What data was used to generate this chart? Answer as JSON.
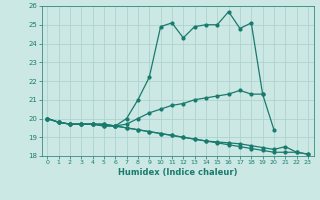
{
  "xlabel": "Humidex (Indice chaleur)",
  "xlim": [
    -0.5,
    23.5
  ],
  "ylim": [
    18,
    26
  ],
  "yticks": [
    18,
    19,
    20,
    21,
    22,
    23,
    24,
    25,
    26
  ],
  "xticks": [
    0,
    1,
    2,
    3,
    4,
    5,
    6,
    7,
    8,
    9,
    10,
    11,
    12,
    13,
    14,
    15,
    16,
    17,
    18,
    19,
    20,
    21,
    22,
    23
  ],
  "background_color": "#cce8e4",
  "grid_color": "#aacfcc",
  "line_color": "#1a7a6e",
  "s1_x": [
    0,
    1,
    2,
    3,
    4,
    5,
    6,
    7,
    8,
    9,
    10,
    11,
    12,
    13,
    14,
    15,
    16,
    17,
    18,
    19
  ],
  "s1_y": [
    20.0,
    19.8,
    19.7,
    19.7,
    19.7,
    19.7,
    19.6,
    20.0,
    21.0,
    22.2,
    24.9,
    25.1,
    24.3,
    24.9,
    25.0,
    25.0,
    25.7,
    24.8,
    25.1,
    21.3
  ],
  "s2_x": [
    0,
    1,
    2,
    3,
    4,
    5,
    6,
    7,
    8,
    9,
    10,
    11,
    12,
    13,
    14,
    15,
    16,
    17,
    18,
    19,
    20
  ],
  "s2_y": [
    20.0,
    19.8,
    19.7,
    19.7,
    19.7,
    19.7,
    19.6,
    19.7,
    20.0,
    20.3,
    20.5,
    20.7,
    20.8,
    21.0,
    21.1,
    21.2,
    21.3,
    21.5,
    21.3,
    21.3,
    19.4
  ],
  "s3_x": [
    0,
    1,
    2,
    3,
    4,
    5,
    6,
    7,
    8,
    9,
    10,
    11,
    12,
    13,
    14,
    15,
    16,
    17,
    18,
    19,
    20,
    21,
    22,
    23
  ],
  "s3_y": [
    20.0,
    19.8,
    19.7,
    19.7,
    19.7,
    19.6,
    19.6,
    19.5,
    19.4,
    19.3,
    19.2,
    19.1,
    19.0,
    18.9,
    18.8,
    18.7,
    18.6,
    18.5,
    18.4,
    18.3,
    18.2,
    18.2,
    18.2,
    18.1
  ],
  "s4_x": [
    0,
    1,
    2,
    3,
    4,
    5,
    6,
    7,
    8,
    9,
    10,
    11,
    12,
    13,
    14,
    15,
    16,
    17,
    18,
    19,
    20,
    21,
    22,
    23
  ],
  "s4_y": [
    20.0,
    19.8,
    19.7,
    19.7,
    19.7,
    19.6,
    19.6,
    19.5,
    19.4,
    19.3,
    19.2,
    19.1,
    19.0,
    18.9,
    18.8,
    18.75,
    18.7,
    18.65,
    18.55,
    18.45,
    18.35,
    18.5,
    18.2,
    18.1
  ]
}
